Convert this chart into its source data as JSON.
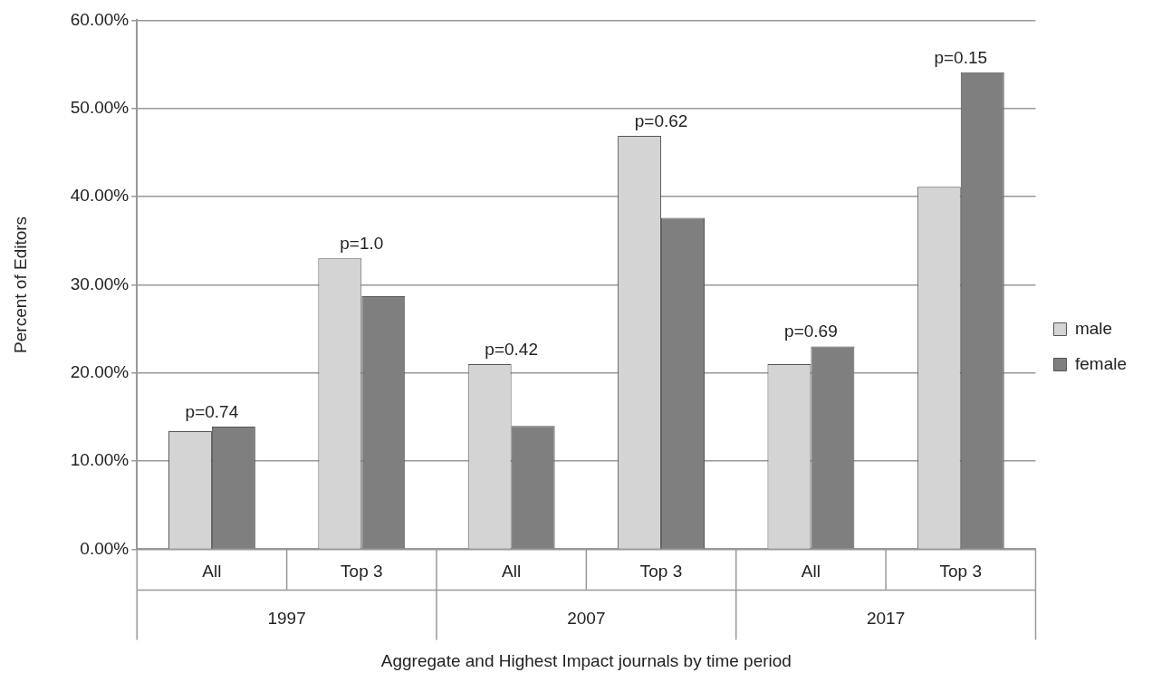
{
  "chart_data": {
    "type": "bar",
    "xlabel": "Aggregate and Highest Impact journals by time period",
    "ylabel": "Percent of Editors",
    "categories": [
      "All",
      "Top 3",
      "All",
      "Top 3",
      "All",
      "Top 3"
    ],
    "series": [
      {
        "name": "male",
        "color": "#d4d4d4",
        "values": [
          13.4,
          33.0,
          21.0,
          46.9,
          21.0,
          41.1
        ]
      },
      {
        "name": "female",
        "color": "#7f7f7f",
        "values": [
          13.9,
          28.7,
          14.0,
          37.6,
          23.0,
          54.1
        ]
      }
    ],
    "ylim": [
      0,
      60
    ],
    "yticks": [
      {
        "value": 0,
        "label": "0.00%"
      },
      {
        "value": 10,
        "label": "10.00%"
      },
      {
        "value": 20,
        "label": "20.00%"
      },
      {
        "value": 30,
        "label": "30.00%"
      },
      {
        "value": 40,
        "label": "40.00%"
      },
      {
        "value": 50,
        "label": "50.00%"
      },
      {
        "value": 60,
        "label": "60.00%"
      }
    ],
    "annotations": [
      "p=0.74",
      "p=1.0",
      "p=0.42",
      "p=0.62",
      "p=0.69",
      "p=0.15",
      "1997",
      "2007",
      "2017"
    ],
    "grid": "y",
    "legend": "right"
  }
}
